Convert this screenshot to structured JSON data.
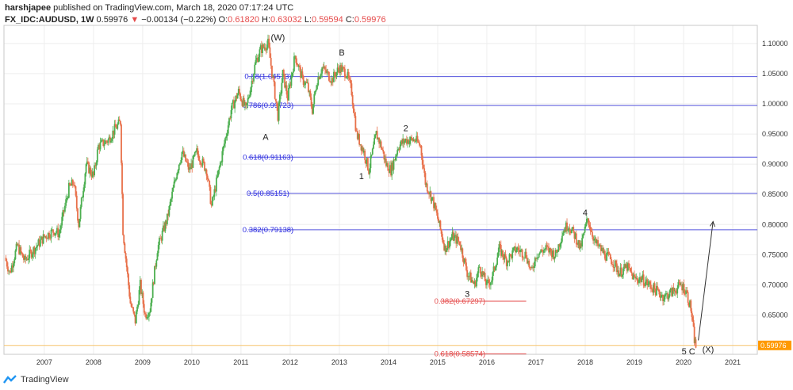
{
  "header": {
    "publisher": "harshjapee",
    "published_text": "published on TradingView.com, March 18, 2020 07:17:24 UTC",
    "symbol": "FX_IDC:AUDUSD, 1W",
    "last": "0.59976",
    "change_arrow": "▼",
    "change": "−0.00134 (−0.22%)",
    "o_label": "O:",
    "o_value": "0.61820",
    "h_label": "H:",
    "h_value": "0.63032",
    "l_label": "L:",
    "l_value": "0.59594",
    "c_label": "C:",
    "c_value": "0.59976"
  },
  "footer": {
    "brand": "TradingView",
    "logo_icon": "tradingview-logo-icon"
  },
  "colors": {
    "up": "#4caf50",
    "down": "#e8704a",
    "fib_line": "#5555dd",
    "fib_label": "#2a2ae0",
    "ext_line": "#e54b4b",
    "last_price_bg": "#ff9900",
    "axis_text": "#333333",
    "grid": "#eeeeee"
  },
  "chart_data": {
    "type": "candlestick",
    "ylim": [
      0.585,
      1.13
    ],
    "y_ticks": [
      "0.65000",
      "0.70000",
      "0.75000",
      "0.80000",
      "0.85000",
      "0.90000",
      "0.95000",
      "1.00000",
      "1.05000",
      "1.10000"
    ],
    "x_ticks": [
      "2007",
      "2008",
      "2009",
      "2010",
      "2011",
      "2012",
      "2013",
      "2014",
      "2015",
      "2016",
      "2017",
      "2018",
      "2019",
      "2020",
      "2021"
    ],
    "last_price_label": "0.59976",
    "last_price": 0.59976,
    "path": [
      [
        2006.2,
        0.745
      ],
      [
        2006.3,
        0.72
      ],
      [
        2006.45,
        0.765
      ],
      [
        2006.6,
        0.74
      ],
      [
        2006.8,
        0.76
      ],
      [
        2007.0,
        0.78
      ],
      [
        2007.2,
        0.79
      ],
      [
        2007.3,
        0.785
      ],
      [
        2007.5,
        0.86
      ],
      [
        2007.6,
        0.87
      ],
      [
        2007.7,
        0.8
      ],
      [
        2007.85,
        0.9
      ],
      [
        2008.0,
        0.88
      ],
      [
        2008.1,
        0.93
      ],
      [
        2008.3,
        0.94
      ],
      [
        2008.45,
        0.96
      ],
      [
        2008.55,
        0.97
      ],
      [
        2008.6,
        0.79
      ],
      [
        2008.75,
        0.67
      ],
      [
        2008.85,
        0.64
      ],
      [
        2008.95,
        0.7
      ],
      [
        2009.05,
        0.65
      ],
      [
        2009.15,
        0.66
      ],
      [
        2009.3,
        0.76
      ],
      [
        2009.5,
        0.81
      ],
      [
        2009.7,
        0.89
      ],
      [
        2009.8,
        0.92
      ],
      [
        2009.95,
        0.89
      ],
      [
        2010.1,
        0.92
      ],
      [
        2010.3,
        0.89
      ],
      [
        2010.4,
        0.83
      ],
      [
        2010.6,
        0.91
      ],
      [
        2010.8,
        0.99
      ],
      [
        2010.95,
        1.02
      ],
      [
        2011.1,
        0.99
      ],
      [
        2011.3,
        1.07
      ],
      [
        2011.4,
        1.09
      ],
      [
        2011.55,
        1.1
      ],
      [
        2011.65,
        1.04
      ],
      [
        2011.75,
        0.98
      ],
      [
        2011.85,
        1.05
      ],
      [
        2011.95,
        1.01
      ],
      [
        2012.1,
        1.08
      ],
      [
        2012.25,
        1.04
      ],
      [
        2012.35,
        1.03
      ],
      [
        2012.45,
        0.99
      ],
      [
        2012.55,
        1.04
      ],
      [
        2012.65,
        1.06
      ],
      [
        2012.85,
        1.04
      ],
      [
        2013.0,
        1.06
      ],
      [
        2013.15,
        1.05
      ],
      [
        2013.25,
        1.02
      ],
      [
        2013.35,
        0.95
      ],
      [
        2013.5,
        0.92
      ],
      [
        2013.6,
        0.89
      ],
      [
        2013.75,
        0.95
      ],
      [
        2013.85,
        0.93
      ],
      [
        2013.95,
        0.9
      ],
      [
        2014.05,
        0.89
      ],
      [
        2014.2,
        0.93
      ],
      [
        2014.35,
        0.94
      ],
      [
        2014.55,
        0.94
      ],
      [
        2014.65,
        0.93
      ],
      [
        2014.75,
        0.87
      ],
      [
        2014.9,
        0.84
      ],
      [
        2015.0,
        0.81
      ],
      [
        2015.15,
        0.76
      ],
      [
        2015.3,
        0.78
      ],
      [
        2015.45,
        0.77
      ],
      [
        2015.6,
        0.72
      ],
      [
        2015.75,
        0.7
      ],
      [
        2015.85,
        0.73
      ],
      [
        2016.0,
        0.7
      ],
      [
        2016.1,
        0.71
      ],
      [
        2016.25,
        0.76
      ],
      [
        2016.4,
        0.74
      ],
      [
        2016.6,
        0.76
      ],
      [
        2016.8,
        0.75
      ],
      [
        2016.9,
        0.72
      ],
      [
        2017.0,
        0.75
      ],
      [
        2017.2,
        0.76
      ],
      [
        2017.4,
        0.75
      ],
      [
        2017.55,
        0.79
      ],
      [
        2017.65,
        0.8
      ],
      [
        2017.8,
        0.78
      ],
      [
        2017.9,
        0.76
      ],
      [
        2018.05,
        0.81
      ],
      [
        2018.2,
        0.77
      ],
      [
        2018.4,
        0.75
      ],
      [
        2018.55,
        0.74
      ],
      [
        2018.7,
        0.72
      ],
      [
        2018.85,
        0.73
      ],
      [
        2019.0,
        0.71
      ],
      [
        2019.15,
        0.71
      ],
      [
        2019.3,
        0.7
      ],
      [
        2019.45,
        0.69
      ],
      [
        2019.6,
        0.68
      ],
      [
        2019.8,
        0.69
      ],
      [
        2019.95,
        0.7
      ],
      [
        2020.05,
        0.69
      ],
      [
        2020.15,
        0.66
      ],
      [
        2020.22,
        0.61
      ],
      [
        2020.25,
        0.598
      ]
    ],
    "fib_levels": [
      {
        "label": "0.88(1.04513)",
        "value": 1.04513
      },
      {
        "label": "0.786(0.99723)",
        "value": 0.99723
      },
      {
        "label": "0.618(0.91163)",
        "value": 0.91163
      },
      {
        "label": "0.5(0.85151)",
        "value": 0.85151
      },
      {
        "label": "0.382(0.79138)",
        "value": 0.79138
      }
    ],
    "ext_levels": [
      {
        "label": "0.382(0.67297)",
        "value": 0.67297
      },
      {
        "label": "0.618(0.58574)",
        "value": 0.58574
      }
    ],
    "annotations": [
      {
        "text": "(W)",
        "x": 2011.75,
        "y": 1.105
      },
      {
        "text": "B",
        "x": 2013.05,
        "y": 1.08
      },
      {
        "text": "A",
        "x": 2011.5,
        "y": 0.94
      },
      {
        "text": "1",
        "x": 2013.45,
        "y": 0.875
      },
      {
        "text": "2",
        "x": 2014.35,
        "y": 0.955
      },
      {
        "text": "3",
        "x": 2015.6,
        "y": 0.68
      },
      {
        "text": "4",
        "x": 2018.0,
        "y": 0.815
      },
      {
        "text": "5 C",
        "x": 2020.1,
        "y": 0.585
      },
      {
        "text": "(X)",
        "x": 2020.5,
        "y": 0.588
      }
    ],
    "projection": {
      "from": [
        2020.3,
        0.608
      ],
      "to": [
        2020.6,
        0.805
      ]
    }
  }
}
